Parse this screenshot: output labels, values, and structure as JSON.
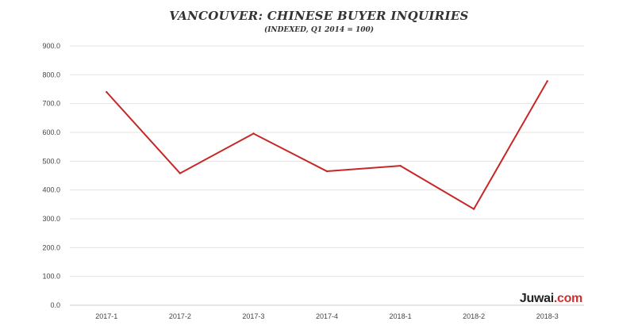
{
  "chart_data": {
    "type": "line",
    "title": "VANCOUVER: CHINESE BUYER INQUIRIES",
    "subtitle": "(INDEXED, Q1 2014 = 100)",
    "categories": [
      "2017-1",
      "2017-2",
      "2017-3",
      "2017-4",
      "2018-1",
      "2018-2",
      "2018-3"
    ],
    "series": [
      {
        "values": [
          740,
          458,
          596,
          465,
          484,
          334,
          778
        ],
        "color": "#c62828"
      }
    ],
    "ylim": [
      0,
      900
    ],
    "yticks": [
      "0.0",
      "100.0",
      "200.0",
      "300.0",
      "400.0",
      "500.0",
      "600.0",
      "700.0",
      "800.0",
      "900.0"
    ],
    "grid": true,
    "xlabel": "",
    "ylabel": ""
  },
  "watermark": {
    "brand": "Juwai",
    "suffix": ".com",
    "accent": "#d32f2f"
  }
}
